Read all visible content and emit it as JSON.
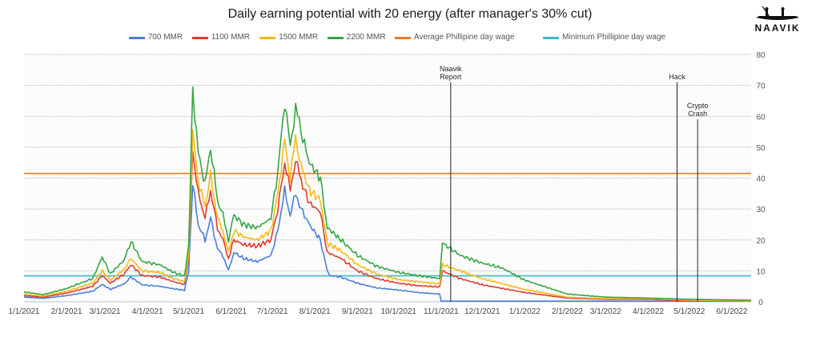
{
  "chart_data": {
    "type": "line",
    "title": "Daily earning potential with 20 energy (after manager's 30% cut)",
    "xlabel": "",
    "ylabel": "",
    "x_range": [
      "2021-01-01",
      "2022-06-15"
    ],
    "ylim": [
      0,
      80
    ],
    "y_ticks": [
      "0",
      "10",
      "20",
      "30",
      "40",
      "50",
      "60",
      "70",
      "80"
    ],
    "x_ticks": [
      {
        "date": "2021-01-01",
        "label": "1/1/2021"
      },
      {
        "date": "2021-02-01",
        "label": "2/1/2021"
      },
      {
        "date": "2021-03-01",
        "label": "3/1/2021"
      },
      {
        "date": "2021-04-01",
        "label": "4/1/2021"
      },
      {
        "date": "2021-05-01",
        "label": "5/1/2021"
      },
      {
        "date": "2021-06-01",
        "label": "6/1/2021"
      },
      {
        "date": "2021-07-01",
        "label": "7/1/2021"
      },
      {
        "date": "2021-08-01",
        "label": "8/1/2021"
      },
      {
        "date": "2021-09-01",
        "label": "9/1/2021"
      },
      {
        "date": "2021-10-01",
        "label": "10/1/2021"
      },
      {
        "date": "2021-11-01",
        "label": "11/1/2021"
      },
      {
        "date": "2021-12-01",
        "label": "12/1/2021"
      },
      {
        "date": "2022-01-01",
        "label": "1/1/2022"
      },
      {
        "date": "2022-02-01",
        "label": "2/1/2022"
      },
      {
        "date": "2022-03-01",
        "label": "3/1/2022"
      },
      {
        "date": "2022-04-01",
        "label": "4/1/2022"
      },
      {
        "date": "2022-05-01",
        "label": "5/1/2022"
      },
      {
        "date": "2022-06-01",
        "label": "6/1/2022"
      }
    ],
    "grid": "horizontal",
    "legend_position": "top",
    "series": [
      {
        "name": "700 MMR",
        "color": "#4a7fd6",
        "points": [
          [
            "2021-01-01",
            1.5
          ],
          [
            "2021-01-15",
            1.1
          ],
          [
            "2021-02-01",
            2.0
          ],
          [
            "2021-02-20",
            3.4
          ],
          [
            "2021-02-27",
            5.6
          ],
          [
            "2021-03-05",
            4.0
          ],
          [
            "2021-03-15",
            5.8
          ],
          [
            "2021-03-20",
            8.0
          ],
          [
            "2021-03-28",
            5.5
          ],
          [
            "2021-04-10",
            5.0
          ],
          [
            "2021-04-20",
            4.2
          ],
          [
            "2021-04-28",
            3.7
          ],
          [
            "2021-05-01",
            10.0
          ],
          [
            "2021-05-04",
            38.0
          ],
          [
            "2021-05-08",
            25.0
          ],
          [
            "2021-05-13",
            20.0
          ],
          [
            "2021-05-17",
            27.0
          ],
          [
            "2021-05-22",
            17.0
          ],
          [
            "2021-05-26",
            15.0
          ],
          [
            "2021-05-30",
            10.0
          ],
          [
            "2021-06-03",
            16.0
          ],
          [
            "2021-06-10",
            14.0
          ],
          [
            "2021-06-20",
            13.0
          ],
          [
            "2021-06-30",
            15.0
          ],
          [
            "2021-07-05",
            23.0
          ],
          [
            "2021-07-10",
            36.0
          ],
          [
            "2021-07-14",
            28.0
          ],
          [
            "2021-07-18",
            35.0
          ],
          [
            "2021-07-22",
            30.0
          ],
          [
            "2021-07-28",
            25.0
          ],
          [
            "2021-08-05",
            20.0
          ],
          [
            "2021-08-10",
            10.0
          ],
          [
            "2021-08-12",
            8.5
          ],
          [
            "2021-08-20",
            8.0
          ],
          [
            "2021-09-01",
            6.0
          ],
          [
            "2021-09-15",
            4.5
          ],
          [
            "2021-10-01",
            3.8
          ],
          [
            "2021-10-15",
            3.0
          ],
          [
            "2021-10-31",
            2.5
          ],
          [
            "2021-11-01",
            0.2
          ],
          [
            "2022-06-15",
            0.2
          ]
        ]
      },
      {
        "name": "1100 MMR",
        "color": "#e03a2e",
        "points": [
          [
            "2021-01-01",
            2.0
          ],
          [
            "2021-01-15",
            1.5
          ],
          [
            "2021-02-01",
            2.8
          ],
          [
            "2021-02-20",
            5.0
          ],
          [
            "2021-02-27",
            8.5
          ],
          [
            "2021-03-05",
            6.0
          ],
          [
            "2021-03-15",
            9.0
          ],
          [
            "2021-03-20",
            12.0
          ],
          [
            "2021-03-28",
            8.5
          ],
          [
            "2021-04-10",
            8.0
          ],
          [
            "2021-04-20",
            6.5
          ],
          [
            "2021-04-28",
            5.6
          ],
          [
            "2021-05-01",
            14.0
          ],
          [
            "2021-05-04",
            49.0
          ],
          [
            "2021-05-08",
            35.0
          ],
          [
            "2021-05-13",
            27.0
          ],
          [
            "2021-05-17",
            36.0
          ],
          [
            "2021-05-22",
            24.0
          ],
          [
            "2021-05-26",
            20.0
          ],
          [
            "2021-05-30",
            14.0
          ],
          [
            "2021-06-03",
            20.0
          ],
          [
            "2021-06-10",
            18.5
          ],
          [
            "2021-06-20",
            18.0
          ],
          [
            "2021-06-30",
            20.0
          ],
          [
            "2021-07-05",
            30.0
          ],
          [
            "2021-07-10",
            45.0
          ],
          [
            "2021-07-14",
            36.0
          ],
          [
            "2021-07-18",
            46.0
          ],
          [
            "2021-07-22",
            39.0
          ],
          [
            "2021-07-28",
            32.0
          ],
          [
            "2021-08-05",
            29.0
          ],
          [
            "2021-08-10",
            16.0
          ],
          [
            "2021-08-20",
            14.0
          ],
          [
            "2021-09-01",
            10.0
          ],
          [
            "2021-09-15",
            7.5
          ],
          [
            "2021-10-01",
            6.0
          ],
          [
            "2021-10-15",
            5.2
          ],
          [
            "2021-10-31",
            4.8
          ],
          [
            "2021-11-02",
            10.0
          ],
          [
            "2021-11-15",
            7.5
          ],
          [
            "2021-12-01",
            5.5
          ],
          [
            "2022-01-01",
            3.0
          ],
          [
            "2022-02-01",
            1.2
          ],
          [
            "2022-03-01",
            0.8
          ],
          [
            "2022-04-01",
            0.8
          ],
          [
            "2022-05-01",
            0.3
          ],
          [
            "2022-06-15",
            0.2
          ]
        ]
      },
      {
        "name": "1500 MMR",
        "color": "#f6b913",
        "points": [
          [
            "2021-01-01",
            2.5
          ],
          [
            "2021-01-15",
            1.8
          ],
          [
            "2021-02-01",
            3.4
          ],
          [
            "2021-02-20",
            6.0
          ],
          [
            "2021-02-27",
            10.0
          ],
          [
            "2021-03-05",
            7.0
          ],
          [
            "2021-03-15",
            10.5
          ],
          [
            "2021-03-20",
            14.0
          ],
          [
            "2021-03-28",
            10.0
          ],
          [
            "2021-04-10",
            9.5
          ],
          [
            "2021-04-20",
            7.5
          ],
          [
            "2021-04-28",
            6.6
          ],
          [
            "2021-05-01",
            15.0
          ],
          [
            "2021-05-04",
            54.0
          ],
          [
            "2021-05-08",
            39.0
          ],
          [
            "2021-05-13",
            31.0
          ],
          [
            "2021-05-17",
            41.0
          ],
          [
            "2021-05-22",
            27.0
          ],
          [
            "2021-05-26",
            23.0
          ],
          [
            "2021-05-30",
            16.0
          ],
          [
            "2021-06-03",
            23.0
          ],
          [
            "2021-06-10",
            21.0
          ],
          [
            "2021-06-20",
            20.0
          ],
          [
            "2021-06-30",
            23.0
          ],
          [
            "2021-07-05",
            35.0
          ],
          [
            "2021-07-10",
            52.0
          ],
          [
            "2021-07-14",
            40.0
          ],
          [
            "2021-07-18",
            53.0
          ],
          [
            "2021-07-22",
            44.0
          ],
          [
            "2021-07-28",
            36.0
          ],
          [
            "2021-08-05",
            33.0
          ],
          [
            "2021-08-10",
            19.0
          ],
          [
            "2021-08-20",
            16.5
          ],
          [
            "2021-09-01",
            12.0
          ],
          [
            "2021-09-15",
            9.0
          ],
          [
            "2021-10-01",
            7.2
          ],
          [
            "2021-10-15",
            6.5
          ],
          [
            "2021-10-31",
            5.8
          ],
          [
            "2021-11-02",
            12.0
          ],
          [
            "2021-11-15",
            10.0
          ],
          [
            "2021-12-01",
            7.5
          ],
          [
            "2022-01-01",
            4.0
          ],
          [
            "2022-02-01",
            1.5
          ],
          [
            "2022-03-01",
            1.0
          ],
          [
            "2022-04-01",
            1.0
          ],
          [
            "2022-05-01",
            0.5
          ],
          [
            "2022-06-15",
            0.3
          ]
        ]
      },
      {
        "name": "2200 MMR",
        "color": "#35a544",
        "points": [
          [
            "2021-01-01",
            3.2
          ],
          [
            "2021-01-15",
            2.3
          ],
          [
            "2021-02-01",
            4.3
          ],
          [
            "2021-02-20",
            7.5
          ],
          [
            "2021-02-27",
            14.5
          ],
          [
            "2021-03-05",
            9.0
          ],
          [
            "2021-03-15",
            13.5
          ],
          [
            "2021-03-20",
            19.5
          ],
          [
            "2021-03-28",
            13.0
          ],
          [
            "2021-04-10",
            12.0
          ],
          [
            "2021-04-20",
            9.5
          ],
          [
            "2021-04-28",
            8.4
          ],
          [
            "2021-05-01",
            18.0
          ],
          [
            "2021-05-04",
            69.0
          ],
          [
            "2021-05-08",
            48.0
          ],
          [
            "2021-05-13",
            38.0
          ],
          [
            "2021-05-17",
            50.0
          ],
          [
            "2021-05-22",
            33.0
          ],
          [
            "2021-05-26",
            28.0
          ],
          [
            "2021-05-30",
            20.0
          ],
          [
            "2021-06-03",
            28.0
          ],
          [
            "2021-06-10",
            25.0
          ],
          [
            "2021-06-20",
            24.0
          ],
          [
            "2021-06-30",
            27.0
          ],
          [
            "2021-07-05",
            42.0
          ],
          [
            "2021-07-10",
            65.0
          ],
          [
            "2021-07-14",
            50.0
          ],
          [
            "2021-07-18",
            63.0
          ],
          [
            "2021-07-22",
            55.0
          ],
          [
            "2021-07-28",
            45.0
          ],
          [
            "2021-08-05",
            40.0
          ],
          [
            "2021-08-10",
            24.0
          ],
          [
            "2021-08-20",
            20.0
          ],
          [
            "2021-09-01",
            15.0
          ],
          [
            "2021-09-15",
            11.5
          ],
          [
            "2021-10-01",
            9.5
          ],
          [
            "2021-10-15",
            8.5
          ],
          [
            "2021-10-31",
            7.5
          ],
          [
            "2021-11-02",
            19.0
          ],
          [
            "2021-11-15",
            15.0
          ],
          [
            "2021-12-01",
            12.5
          ],
          [
            "2021-12-15",
            11.0
          ],
          [
            "2022-01-01",
            7.0
          ],
          [
            "2022-02-01",
            2.5
          ],
          [
            "2022-03-01",
            1.5
          ],
          [
            "2022-04-01",
            1.2
          ],
          [
            "2022-05-01",
            0.8
          ],
          [
            "2022-06-15",
            0.5
          ]
        ]
      }
    ],
    "reference_lines": [
      {
        "name": "Average Phillipine day wage",
        "color": "#f07b1e",
        "y": 41.5
      },
      {
        "name": "Minimum Phillipine day wage",
        "color": "#3ab9cc",
        "y": 8.4
      }
    ],
    "annotations": [
      {
        "lines": [
          "Naavik",
          "Report"
        ],
        "date": "2021-11-08",
        "y_top": 71
      },
      {
        "lines": [
          "Hack"
        ],
        "date": "2022-04-22",
        "y_top": 71
      },
      {
        "lines": [
          "Crypto",
          "Crash"
        ],
        "date": "2022-05-07",
        "y_top": 59
      }
    ]
  },
  "logo": {
    "text": "NAAVIK"
  }
}
